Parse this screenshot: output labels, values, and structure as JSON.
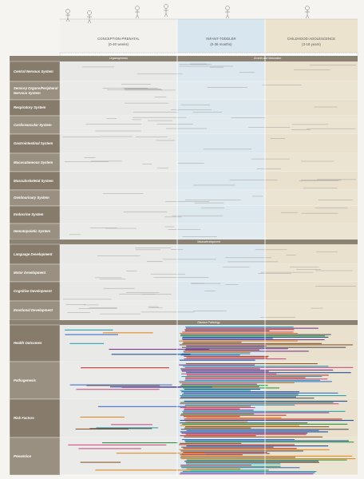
{
  "periods": [
    {
      "title": "CONCEPTION-PRENATAL",
      "subtitle": "(0-40 weeks)"
    },
    {
      "title": "INFANT-TODDLER",
      "subtitle": "(0-36 months)"
    },
    {
      "title": "CHILDHOOD-ADOLESCENCE",
      "subtitle": "(3-18 years)"
    }
  ],
  "sections": [
    {
      "labels": [
        "Organogenesis",
        "Growth and Maturation"
      ],
      "rows": [
        "Central Nervous System",
        "Sensory Organs/Peripheral Nervous System",
        "Respiratory System",
        "Cardiovascular System",
        "Gastrointestinal System",
        "Mucocutaneous System",
        "Musculoskeletal System",
        "Genitourinary System",
        "Endocrine System",
        "Hematopoietic System"
      ]
    },
    {
      "labels": [
        "Neurodevelopment"
      ],
      "rows": [
        "Language Development",
        "Motor Development",
        "Cognitive Development",
        "Emotional Development"
      ]
    },
    {
      "labels": [
        "Disease Pathology"
      ],
      "rows": [
        "Health Outcomes",
        "Pathogenesis",
        "Risk Factors",
        "Prevention"
      ]
    }
  ]
}
